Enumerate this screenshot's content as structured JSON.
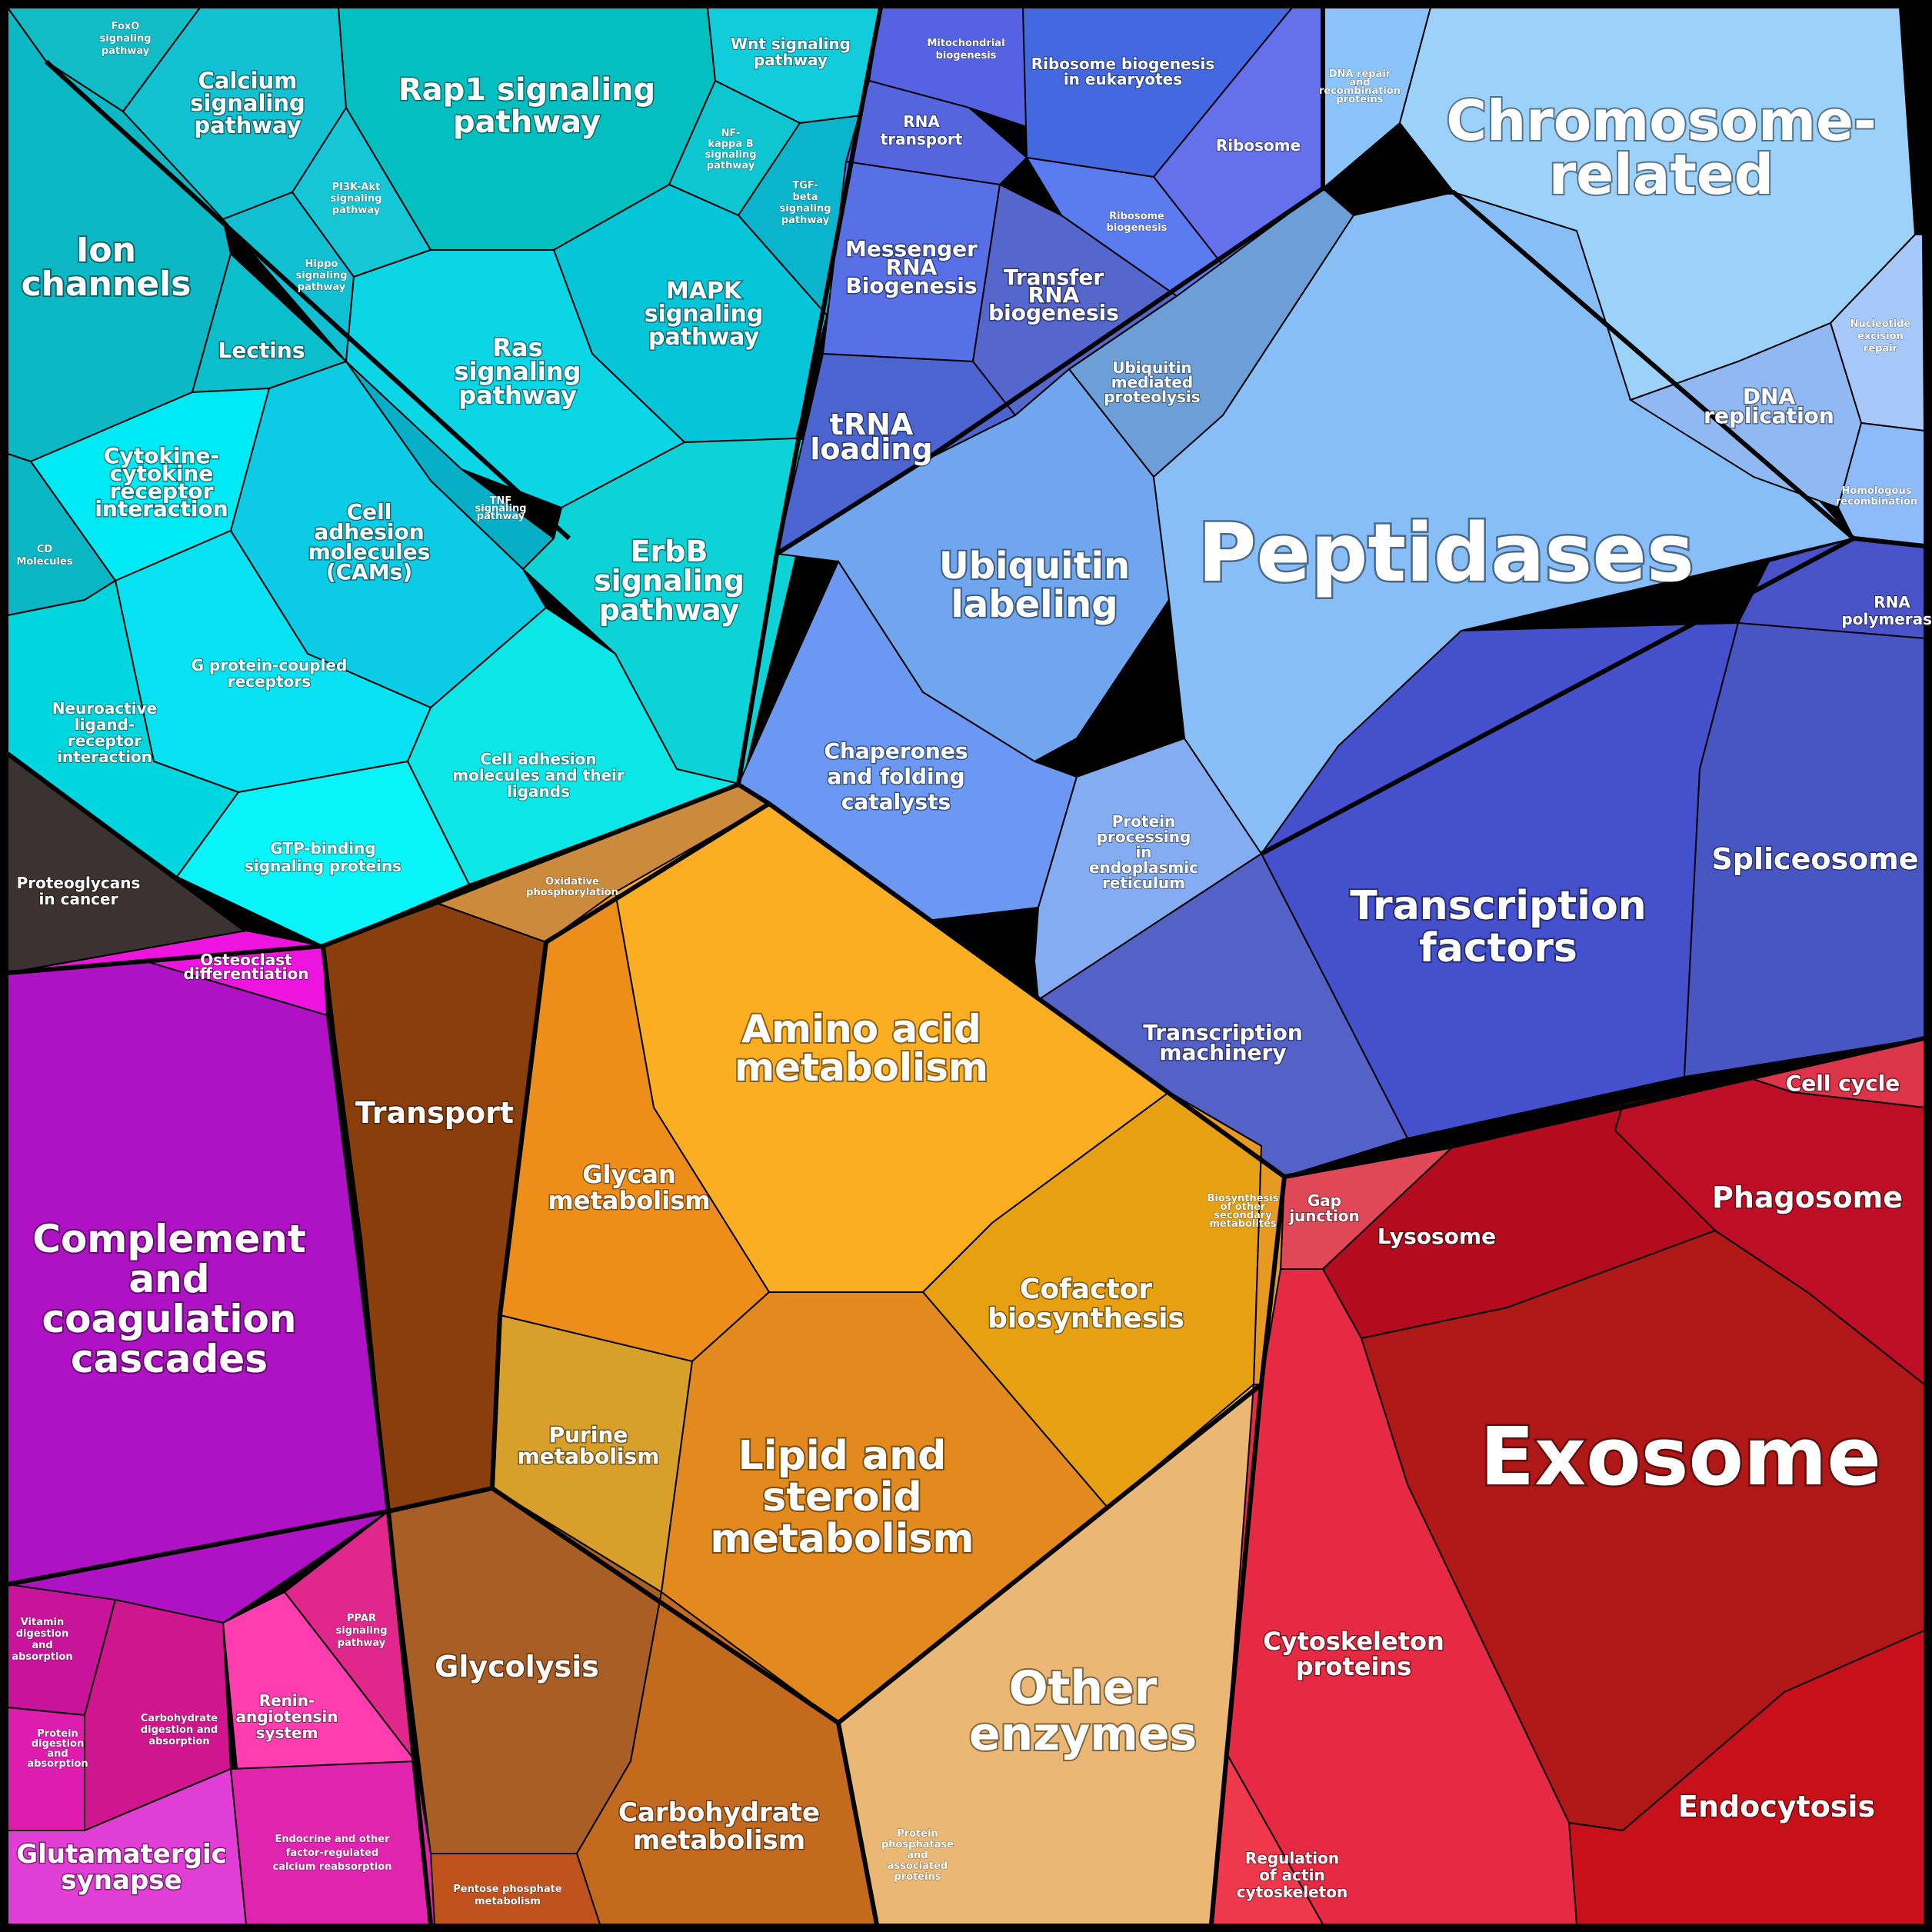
{
  "labels": {
    "peptidases": "Peptidases",
    "exosome": "Exosome",
    "chromosome_related": [
      "Chromosome-",
      "related"
    ],
    "ion_channels": [
      "Ion",
      "channels"
    ],
    "rap1": [
      "Rap1 signaling",
      "pathway"
    ],
    "complement": [
      "Complement",
      "and",
      "coagulation",
      "cascades"
    ],
    "amino_acid": [
      "Amino acid",
      "metabolism"
    ],
    "lipid_steroid": [
      "Lipid and",
      "steroid",
      "metabolism"
    ],
    "other_enzymes": [
      "Other",
      "enzymes"
    ],
    "ubiquitin": [
      "Ubiquitin",
      "labeling"
    ],
    "transcription_factors": [
      "Transcription",
      "factors"
    ],
    "glycolysis": "Glycolysis",
    "transport": "Transport",
    "endocytosis": "Endocytosis",
    "phagosome": "Phagosome",
    "spliceosome": "Spliceosome",
    "cytoskeleton": [
      "Cytoskeleton",
      "proteins"
    ],
    "carbohydrate": [
      "Carbohydrate",
      "metabolism"
    ],
    "glutamatergic": [
      "Glutamatergic",
      "synapse"
    ],
    "cofactor": [
      "Cofactor",
      "biosynthesis"
    ],
    "glycan": [
      "Glycan",
      "metabolism"
    ],
    "purine": [
      "Purine",
      "metabolism"
    ],
    "erbb": [
      "ErbB",
      "signaling",
      "pathway"
    ],
    "ras": [
      "Ras",
      "signaling",
      "pathway"
    ],
    "mapk": [
      "MAPK",
      "signaling",
      "pathway"
    ],
    "calcium": [
      "Calcium",
      "signaling",
      "pathway"
    ],
    "cell_adhesion_cams": [
      "Cell",
      "adhesion",
      "molecules",
      "(CAMs)"
    ],
    "cytokine": [
      "Cytokine-",
      "cytokine",
      "receptor",
      "interaction"
    ],
    "lectins": "Lectins",
    "gpcr": [
      "G protein-coupled",
      "receptors"
    ],
    "neuroactive": [
      "Neuroactive",
      "ligand-",
      "receptor",
      "interaction"
    ],
    "gtp": [
      "GTP-binding",
      "signaling proteins"
    ],
    "cell_adhesion_ligands": [
      "Cell adhesion",
      "molecules and their",
      "ligands"
    ],
    "proteoglycans": [
      "Proteoglycans",
      "in cancer"
    ],
    "osteoclast": [
      "Osteoclast",
      "differentiation"
    ],
    "cd_molecules": [
      "CD",
      "Molecules"
    ],
    "foxo": [
      "FoxO",
      "signaling",
      "pathway"
    ],
    "wnt": [
      "Wnt signaling",
      "pathway"
    ],
    "pi3k": [
      "PI3K-Akt",
      "signaling",
      "pathway"
    ],
    "hippo": [
      "Hippo",
      "signaling",
      "pathway"
    ],
    "nfkb": [
      "NF-",
      "kappa B",
      "signaling",
      "pathway"
    ],
    "tgfb": [
      "TGF-",
      "beta",
      "signaling",
      "pathway"
    ],
    "tnf": [
      "TNF",
      "signaling",
      "pathway"
    ],
    "mito_biogenesis": [
      "Mitochondrial",
      "biogenesis"
    ],
    "ribosome_biogenesis_euk": [
      "Ribosome biogenesis",
      "in eukaryotes"
    ],
    "ribosome": "Ribosome",
    "rna_transport": [
      "RNA",
      "transport"
    ],
    "ribosome_biogenesis": [
      "Ribosome",
      "biogenesis"
    ],
    "mrna": [
      "Messenger",
      "RNA",
      "Biogenesis"
    ],
    "trna_bio": [
      "Transfer",
      "RNA",
      "biogenesis"
    ],
    "trna_loading": [
      "tRNA",
      "loading"
    ],
    "ubiquitin_proteolysis": [
      "Ubiquitin",
      "mediated",
      "proteolysis"
    ],
    "chaperones": [
      "Chaperones",
      "and folding",
      "catalysts"
    ],
    "protein_er": [
      "Protein",
      "processing",
      "in",
      "endoplasmic",
      "reticulum"
    ],
    "dna_repair": [
      "DNA repair",
      "and",
      "recombination",
      "proteins"
    ],
    "nucleotide_excision": [
      "Nucleotide",
      "excision",
      "repair"
    ],
    "dna_replication": [
      "DNA",
      "replication"
    ],
    "homologous": [
      "Homologous",
      "recombination"
    ],
    "rna_polymerase": [
      "RNA",
      "polymerase"
    ],
    "transcription_machinery": [
      "Transcription",
      "machinery"
    ],
    "cell_cycle": "Cell cycle",
    "gap_junction": [
      "Gap",
      "junction"
    ],
    "lysosome": "Lysosome",
    "regulation_actin": [
      "Regulation",
      "of actin",
      "cytoskeleton"
    ],
    "oxidative": [
      "Oxidative",
      "phosphorylation"
    ],
    "biosynthesis_secondary": [
      "Biosynthesis",
      "of other",
      "secondary",
      "metabolites"
    ],
    "vitamin": [
      "Vitamin",
      "digestion",
      "and",
      "absorption"
    ],
    "protein_digestion": [
      "Protein",
      "digestion",
      "and",
      "absorption"
    ],
    "carb_digestion": [
      "Carbohydrate",
      "digestion and",
      "absorption"
    ],
    "ppar": [
      "PPAR",
      "signaling",
      "pathway"
    ],
    "renin": [
      "Renin-",
      "angiotensin",
      "system"
    ],
    "endocrine": [
      "Endocrine and other",
      "factor-regulated",
      "calcium reabsorption"
    ],
    "pentose": [
      "Pentose phosphate",
      "metabolism"
    ],
    "protein_phosphatase": [
      "Protein",
      "phosphatase",
      "and",
      "associated",
      "proteins"
    ]
  },
  "colors": {
    "signaling": "#00C8D2",
    "translation": "#5A6EE6",
    "protein_processing": "#73A5F0",
    "chromosome": "#8CC8FA",
    "transcription": "#4650C8",
    "exosome_red": "#C81428",
    "cytoskeleton_pink": "#E6283C",
    "metabolism_orange": "#F0A01E",
    "brown": "#8C4614",
    "magenta": "#B414C8",
    "pink": "#E628A0",
    "dark_gray": "#3C3232"
  }
}
